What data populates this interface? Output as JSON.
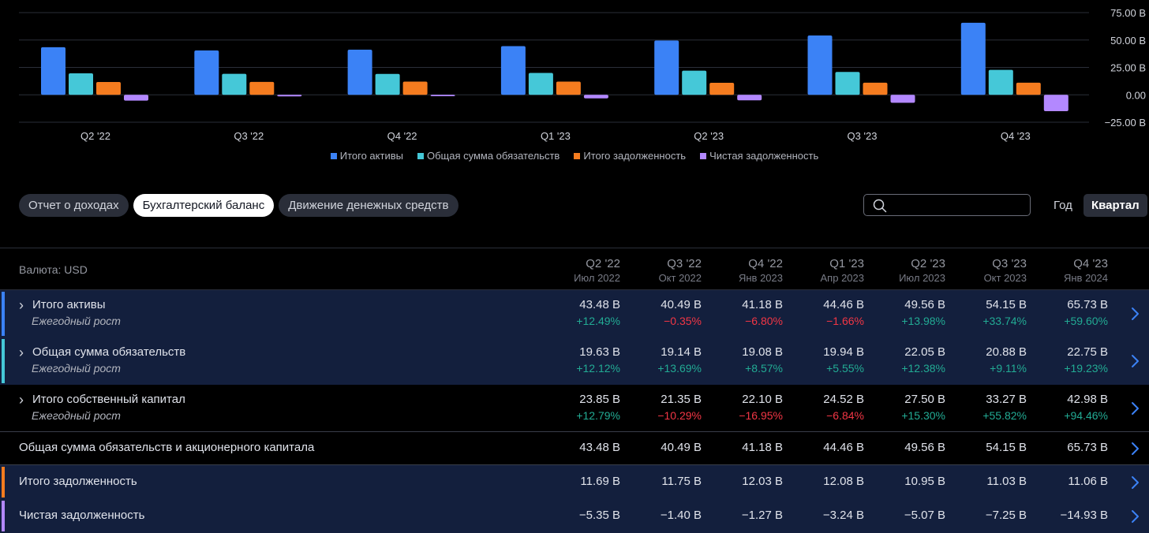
{
  "chart_data": {
    "type": "bar",
    "categories": [
      "Q2 '22",
      "Q3 '22",
      "Q4 '22",
      "Q1 '23",
      "Q2 '23",
      "Q3 '23",
      "Q4 '23"
    ],
    "series": [
      {
        "name": "Итого активы",
        "color": "#3b82f6",
        "values": [
          43.48,
          40.49,
          41.18,
          44.46,
          49.56,
          54.15,
          65.73
        ]
      },
      {
        "name": "Общая сумма обязательств",
        "color": "#45c8d8",
        "values": [
          19.63,
          19.14,
          19.08,
          19.94,
          22.05,
          20.88,
          22.75
        ]
      },
      {
        "name": "Итого задолженность",
        "color": "#f57c1f",
        "values": [
          11.69,
          11.75,
          12.03,
          12.08,
          10.95,
          11.03,
          11.06
        ]
      },
      {
        "name": "Чистая задолженность",
        "color": "#b388ff",
        "values": [
          -5.35,
          -1.4,
          -1.27,
          -3.24,
          -5.07,
          -7.25,
          -14.93
        ]
      }
    ],
    "yticks": [
      "75.00 B",
      "50.00 B",
      "25.00 B",
      "0.00",
      "−25.00 B"
    ],
    "ylim": [
      -25,
      75
    ],
    "legend_position": "bottom-center",
    "grid": true
  },
  "tabs": [
    "Отчет о доходах",
    "Бухгалтерский баланс",
    "Движение денежных средств"
  ],
  "search": {
    "placeholder": ""
  },
  "period": {
    "year": "Год",
    "quarter": "Квартал"
  },
  "table": {
    "currency_label": "Валюта: USD",
    "columns": [
      {
        "q": "Q2 '22",
        "date": "Июл 2022"
      },
      {
        "q": "Q3 '22",
        "date": "Окт 2022"
      },
      {
        "q": "Q4 '22",
        "date": "Янв 2023"
      },
      {
        "q": "Q1 '23",
        "date": "Апр 2023"
      },
      {
        "q": "Q2 '23",
        "date": "Июл 2023"
      },
      {
        "q": "Q3 '23",
        "date": "Окт 2023"
      },
      {
        "q": "Q4 '23",
        "date": "Янв 2024"
      }
    ],
    "rows": [
      {
        "label": "Итого активы",
        "sublabel": "Ежегодный рост",
        "color": "#3b82f6",
        "values": [
          "43.48 B",
          "40.49 B",
          "41.18 B",
          "44.46 B",
          "49.56 B",
          "54.15 B",
          "65.73 B"
        ],
        "growth": [
          "+12.49%",
          "−0.35%",
          "−6.80%",
          "−1.66%",
          "+13.98%",
          "+33.74%",
          "+59.60%"
        ]
      },
      {
        "label": "Общая сумма обязательств",
        "sublabel": "Ежегодный рост",
        "color": "#45c8d8",
        "values": [
          "19.63 B",
          "19.14 B",
          "19.08 B",
          "19.94 B",
          "22.05 B",
          "20.88 B",
          "22.75 B"
        ],
        "growth": [
          "+12.12%",
          "+13.69%",
          "+8.57%",
          "+5.55%",
          "+12.38%",
          "+9.11%",
          "+19.23%"
        ]
      },
      {
        "label": "Итого собственный капитал",
        "sublabel": "Ежегодный рост",
        "values": [
          "23.85 B",
          "21.35 B",
          "22.10 B",
          "24.52 B",
          "27.50 B",
          "33.27 B",
          "42.98 B"
        ],
        "growth": [
          "+12.79%",
          "−10.29%",
          "−16.95%",
          "−6.84%",
          "+15.30%",
          "+55.82%",
          "+94.46%"
        ]
      },
      {
        "label": "Общая сумма обязательств и акционерного капитала",
        "values": [
          "43.48 B",
          "40.49 B",
          "41.18 B",
          "44.46 B",
          "49.56 B",
          "54.15 B",
          "65.73 B"
        ]
      },
      {
        "label": "Итого задолженность",
        "color": "#f57c1f",
        "values": [
          "11.69 B",
          "11.75 B",
          "12.03 B",
          "12.08 B",
          "10.95 B",
          "11.03 B",
          "11.06 B"
        ]
      },
      {
        "label": "Чистая задолженность",
        "color": "#b388ff",
        "values": [
          "−5.35 B",
          "−1.40 B",
          "−1.27 B",
          "−3.24 B",
          "−5.07 B",
          "−7.25 B",
          "−14.93 B"
        ]
      }
    ]
  }
}
